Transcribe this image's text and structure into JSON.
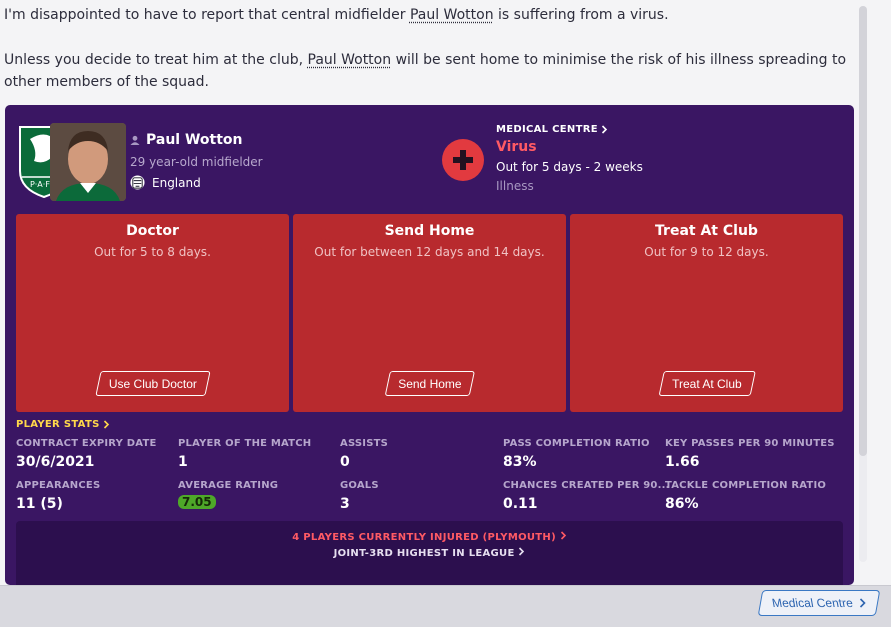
{
  "message": {
    "line1_pre": "I'm disappointed to have to report that central midfielder ",
    "line1_name": "Paul Wotton",
    "line1_post": " is suffering from a virus.",
    "line2_pre": "Unless you decide to treat him at the club, ",
    "line2_name": "Paul Wotton",
    "line2_post": " will be sent home to minimise the risk of his illness spreading to other members of the squad."
  },
  "player": {
    "name": "Paul Wotton",
    "description": "29 year-old midfielder",
    "nation": "England"
  },
  "medical": {
    "section_label": "MEDICAL CENTRE",
    "injury": "Virus",
    "duration": "Out for 5 days - 2 weeks",
    "type": "Illness"
  },
  "options": [
    {
      "title": "Doctor",
      "subtitle": "Out for 5 to 8 days.",
      "button": "Use Club Doctor"
    },
    {
      "title": "Send Home",
      "subtitle": "Out for between 12 days and 14 days.",
      "button": "Send Home"
    },
    {
      "title": "Treat At Club",
      "subtitle": "Out for 9 to 12 days.",
      "button": "Treat At Club"
    }
  ],
  "stats": {
    "section_label": "PLAYER STATS",
    "items": [
      {
        "label": "CONTRACT EXPIRY DATE",
        "value": "30/6/2021"
      },
      {
        "label": "PLAYER OF THE MATCH",
        "value": "1"
      },
      {
        "label": "ASSISTS",
        "value": "0"
      },
      {
        "label": "PASS COMPLETION RATIO",
        "value": "83%"
      },
      {
        "label": "KEY PASSES PER 90 MINUTES",
        "value": "1.66"
      },
      {
        "label": "APPEARANCES",
        "value": "11 (5)"
      },
      {
        "label": "AVERAGE RATING",
        "value": "7.05"
      },
      {
        "label": "GOALS",
        "value": "3"
      },
      {
        "label": "CHANCES CREATED PER 90...",
        "value": "0.11"
      },
      {
        "label": "TACKLE COMPLETION RATIO",
        "value": "86%"
      }
    ]
  },
  "injuries": {
    "title": "4 PLAYERS CURRENTLY INJURED (PLYMOUTH)",
    "subtitle": "JOINT-3RD HIGHEST IN LEAGUE"
  },
  "footer": {
    "button": "Medical Centre"
  },
  "colors": {
    "panel_bg": "#3a1663",
    "card_red": "#b82a2e",
    "stats_title": "#ffd84a",
    "injury_red": "#ff5a64",
    "rating_green": "#4ea829",
    "link_blue": "#2d64b0"
  },
  "icons": {
    "player_icon": "person-icon",
    "nation_icon": "england-flag-icon",
    "medical_icon": "medical-cross-icon",
    "chevron": "chevron-right-icon"
  }
}
